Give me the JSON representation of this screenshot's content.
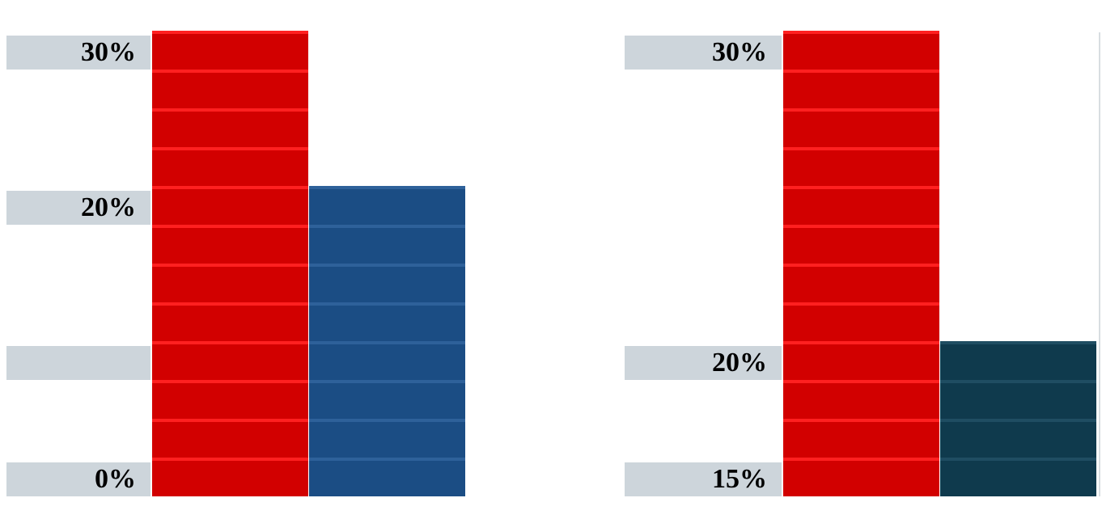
{
  "chart_data": [
    {
      "type": "bar",
      "categories": [
        null,
        null
      ],
      "values": [
        30,
        20
      ],
      "colors": [
        "#d20000",
        "#1b4d84"
      ],
      "stripe_colors": [
        "#ff2020",
        "#2e619a"
      ],
      "ylim": [
        0,
        30
      ],
      "yticks": [
        {
          "value": 0,
          "label": "0%"
        },
        {
          "value": 10,
          "label": null
        },
        {
          "value": 20,
          "label": "20%"
        },
        {
          "value": 30,
          "label": "30%"
        }
      ]
    },
    {
      "type": "bar",
      "categories": [
        null,
        null
      ],
      "values": [
        30,
        20
      ],
      "colors": [
        "#d20000",
        "#0f3a4d"
      ],
      "stripe_colors": [
        "#ff2020",
        "#1f4d62"
      ],
      "ylim": [
        15,
        30
      ],
      "yticks": [
        {
          "value": 15,
          "label": "15%"
        },
        {
          "value": 20,
          "label": "20%"
        },
        {
          "value": 30,
          "label": "30%"
        }
      ]
    }
  ]
}
